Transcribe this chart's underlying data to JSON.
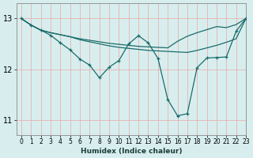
{
  "xlabel": "Humidex (Indice chaleur)",
  "bg_color": "#d8eeee",
  "line_color": "#1a6b6b",
  "grid_color": "#c8d8c8",
  "xlim": [
    -0.5,
    23
  ],
  "ylim": [
    10.7,
    13.3
  ],
  "yticks": [
    11,
    12,
    13
  ],
  "xticks": [
    0,
    1,
    2,
    3,
    4,
    5,
    6,
    7,
    8,
    9,
    10,
    11,
    12,
    13,
    14,
    15,
    16,
    17,
    18,
    19,
    20,
    21,
    22,
    23
  ],
  "line1_x": [
    0,
    1,
    2,
    3,
    4,
    5,
    6,
    7,
    8,
    9,
    10,
    11,
    12,
    13,
    14,
    15,
    16,
    17,
    18,
    19,
    20,
    21,
    22,
    23
  ],
  "line1_y": [
    13.0,
    12.87,
    12.77,
    12.72,
    12.68,
    12.64,
    12.6,
    12.57,
    12.54,
    12.51,
    12.49,
    12.47,
    12.45,
    12.44,
    12.43,
    12.42,
    12.55,
    12.65,
    12.72,
    12.78,
    12.84,
    12.82,
    12.88,
    13.0
  ],
  "line2_x": [
    0,
    1,
    2,
    3,
    4,
    5,
    6,
    7,
    8,
    9,
    10,
    11,
    12,
    13,
    14,
    15,
    16,
    17,
    18,
    19,
    20,
    21,
    22,
    23
  ],
  "line2_y": [
    13.0,
    12.87,
    12.77,
    12.72,
    12.68,
    12.64,
    12.58,
    12.54,
    12.5,
    12.46,
    12.43,
    12.41,
    12.39,
    12.37,
    12.36,
    12.35,
    12.34,
    12.33,
    12.37,
    12.42,
    12.47,
    12.53,
    12.6,
    13.0
  ],
  "line3_x": [
    0,
    1,
    2,
    3,
    4,
    5,
    6,
    7,
    8,
    9,
    10,
    11,
    12,
    13,
    14,
    15,
    16,
    17,
    18,
    19,
    20,
    21,
    22,
    23
  ],
  "line3_y": [
    13.0,
    12.87,
    12.77,
    12.67,
    12.52,
    12.38,
    12.2,
    12.08,
    11.83,
    12.04,
    12.17,
    12.5,
    12.66,
    12.52,
    12.21,
    11.4,
    11.08,
    11.12,
    12.03,
    12.22,
    12.23,
    12.24,
    12.75,
    13.0
  ]
}
